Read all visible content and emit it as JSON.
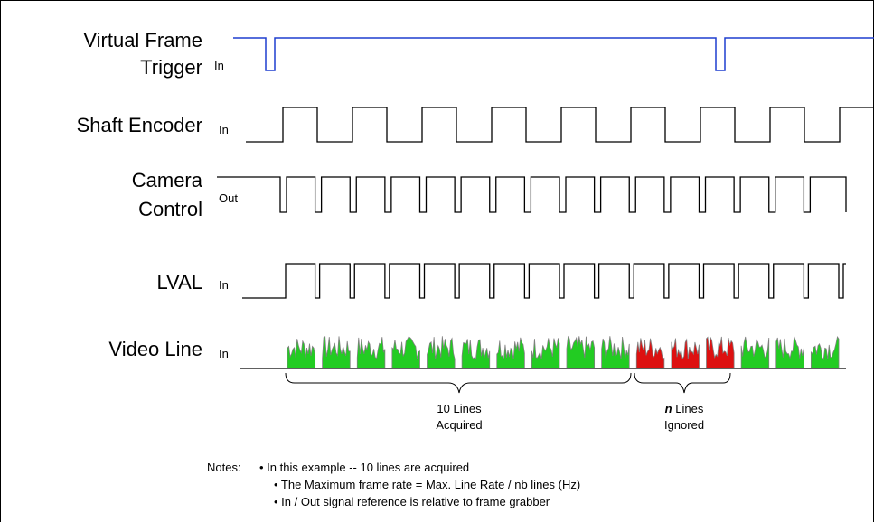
{
  "signals": [
    {
      "id": "vft",
      "name_lines": [
        "Virtual Frame",
        "Trigger"
      ],
      "direction": "In"
    },
    {
      "id": "enc",
      "name_lines": [
        "Shaft Encoder"
      ],
      "direction": "In"
    },
    {
      "id": "cam",
      "name_lines": [
        "Camera",
        "Control"
      ],
      "direction": "Out"
    },
    {
      "id": "lval",
      "name_lines": [
        "LVAL"
      ],
      "direction": "In"
    },
    {
      "id": "video",
      "name_lines": [
        "Video Line"
      ],
      "direction": "In"
    }
  ],
  "groups": {
    "acquired": {
      "count_text": "10 Lines",
      "status_text": "Acquired"
    },
    "ignored": {
      "count_text": "n",
      "count_suffix": " Lines",
      "status_text": "Ignored"
    }
  },
  "notes": {
    "heading": "Notes:",
    "items": [
      "• In this example -- 10 lines are acquired",
      "• The Maximum frame rate =  Max. Line Rate / nb lines (Hz)",
      "• In / Out signal reference is relative to frame grabber"
    ]
  },
  "colors": {
    "trigger_line": "#1f3fcf",
    "acquired_video": "#22cc22",
    "ignored_video": "#dd1111",
    "video_noise": "#808080"
  },
  "timing": {
    "lines_acquired": 10,
    "lines_ignored": 3,
    "trailing_lines": 3
  }
}
